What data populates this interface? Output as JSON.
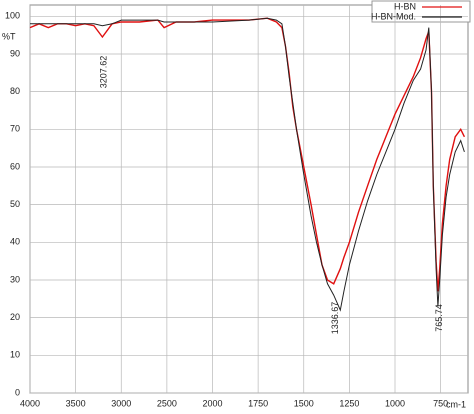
{
  "chart_data": {
    "type": "line",
    "x_label": "cm-1",
    "y_label": "%T",
    "x": [
      4000,
      3900,
      3800,
      3700,
      3600,
      3500,
      3400,
      3300,
      3207,
      3100,
      3000,
      2800,
      2600,
      2530,
      2400,
      2200,
      2000,
      1800,
      1700,
      1650,
      1620,
      1600,
      1580,
      1560,
      1540,
      1500,
      1460,
      1430,
      1400,
      1370,
      1336,
      1300,
      1280,
      1250,
      1200,
      1150,
      1100,
      1050,
      1000,
      950,
      900,
      860,
      830,
      815,
      800,
      790,
      775,
      765,
      755,
      740,
      720,
      700,
      670,
      640,
      620
    ],
    "series": [
      {
        "name": "H-BN",
        "color": "#e01010",
        "values": [
          97,
          98,
          97,
          98,
          98,
          97.5,
          98,
          97.5,
          94.5,
          98,
          98.5,
          98.5,
          99,
          97,
          98.5,
          98.5,
          99,
          99,
          99.5,
          98.5,
          97,
          92,
          85,
          76,
          70,
          60,
          50,
          42,
          34,
          30,
          29,
          33,
          36,
          40,
          48,
          55,
          62,
          68,
          74,
          79,
          84,
          89,
          94,
          96,
          80,
          55,
          35,
          27,
          33,
          45,
          55,
          62,
          68,
          70,
          68
        ]
      },
      {
        "name": "H-BN-Mod.",
        "color": "#222222",
        "values": [
          98,
          98,
          98,
          98,
          98,
          98,
          98,
          98,
          97.5,
          98,
          99,
          99,
          99,
          98.5,
          98.5,
          98.5,
          98.5,
          99,
          99.5,
          99,
          98,
          92,
          84,
          77,
          70,
          58,
          47,
          40,
          34,
          29,
          26,
          22,
          27,
          34,
          43,
          51,
          58,
          64,
          70,
          77,
          83,
          86,
          91,
          97,
          80,
          55,
          33,
          23,
          30,
          42,
          52,
          58,
          64,
          67,
          64
        ]
      }
    ],
    "peak_labels": [
      3207.62,
      1336.67,
      765.74
    ],
    "xlim": [
      4000,
      600
    ],
    "xticks": [
      4000,
      3500,
      3000,
      2500,
      2000,
      1750,
      1500,
      1250,
      1000,
      750
    ],
    "ylim": [
      0,
      103
    ],
    "yticks": [
      0,
      10,
      20,
      30,
      40,
      50,
      60,
      70,
      80,
      90,
      100
    ],
    "grid": true
  }
}
